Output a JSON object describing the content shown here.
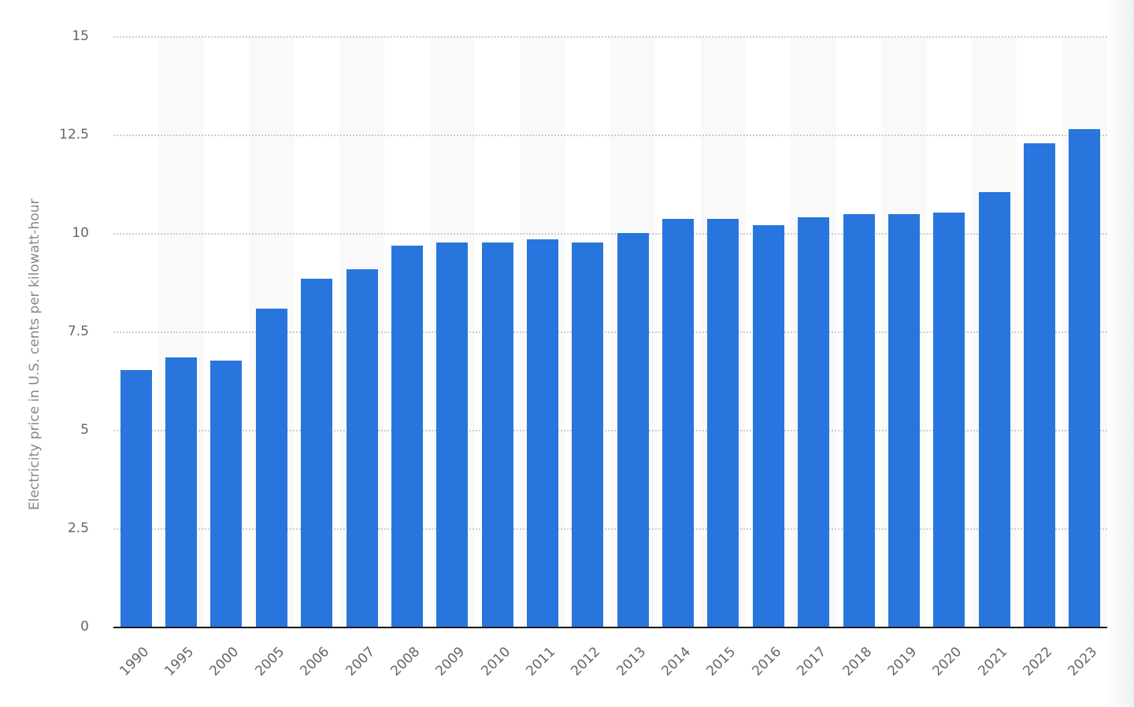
{
  "chart_data": {
    "type": "bar",
    "title": "",
    "xlabel": "",
    "ylabel": "Electricity price in U.S. cents per kilowatt-hour",
    "ylim": [
      0,
      15
    ],
    "yticks": [
      "0",
      "2.5",
      "5",
      "7.5",
      "10",
      "12.5",
      "15"
    ],
    "grid": true,
    "legend": null,
    "bar_color": "#2876dd",
    "categories": [
      "1990",
      "1995",
      "2000",
      "2005",
      "2006",
      "2007",
      "2008",
      "2009",
      "2010",
      "2011",
      "2012",
      "2013",
      "2014",
      "2015",
      "2016",
      "2017",
      "2018",
      "2019",
      "2020",
      "2021",
      "2022",
      "2023"
    ],
    "values": [
      6.54,
      6.86,
      6.78,
      8.1,
      8.86,
      9.1,
      9.7,
      9.78,
      9.78,
      9.86,
      9.78,
      10.02,
      10.38,
      10.38,
      10.22,
      10.42,
      10.5,
      10.5,
      10.54,
      11.06,
      12.3,
      12.66
    ]
  }
}
